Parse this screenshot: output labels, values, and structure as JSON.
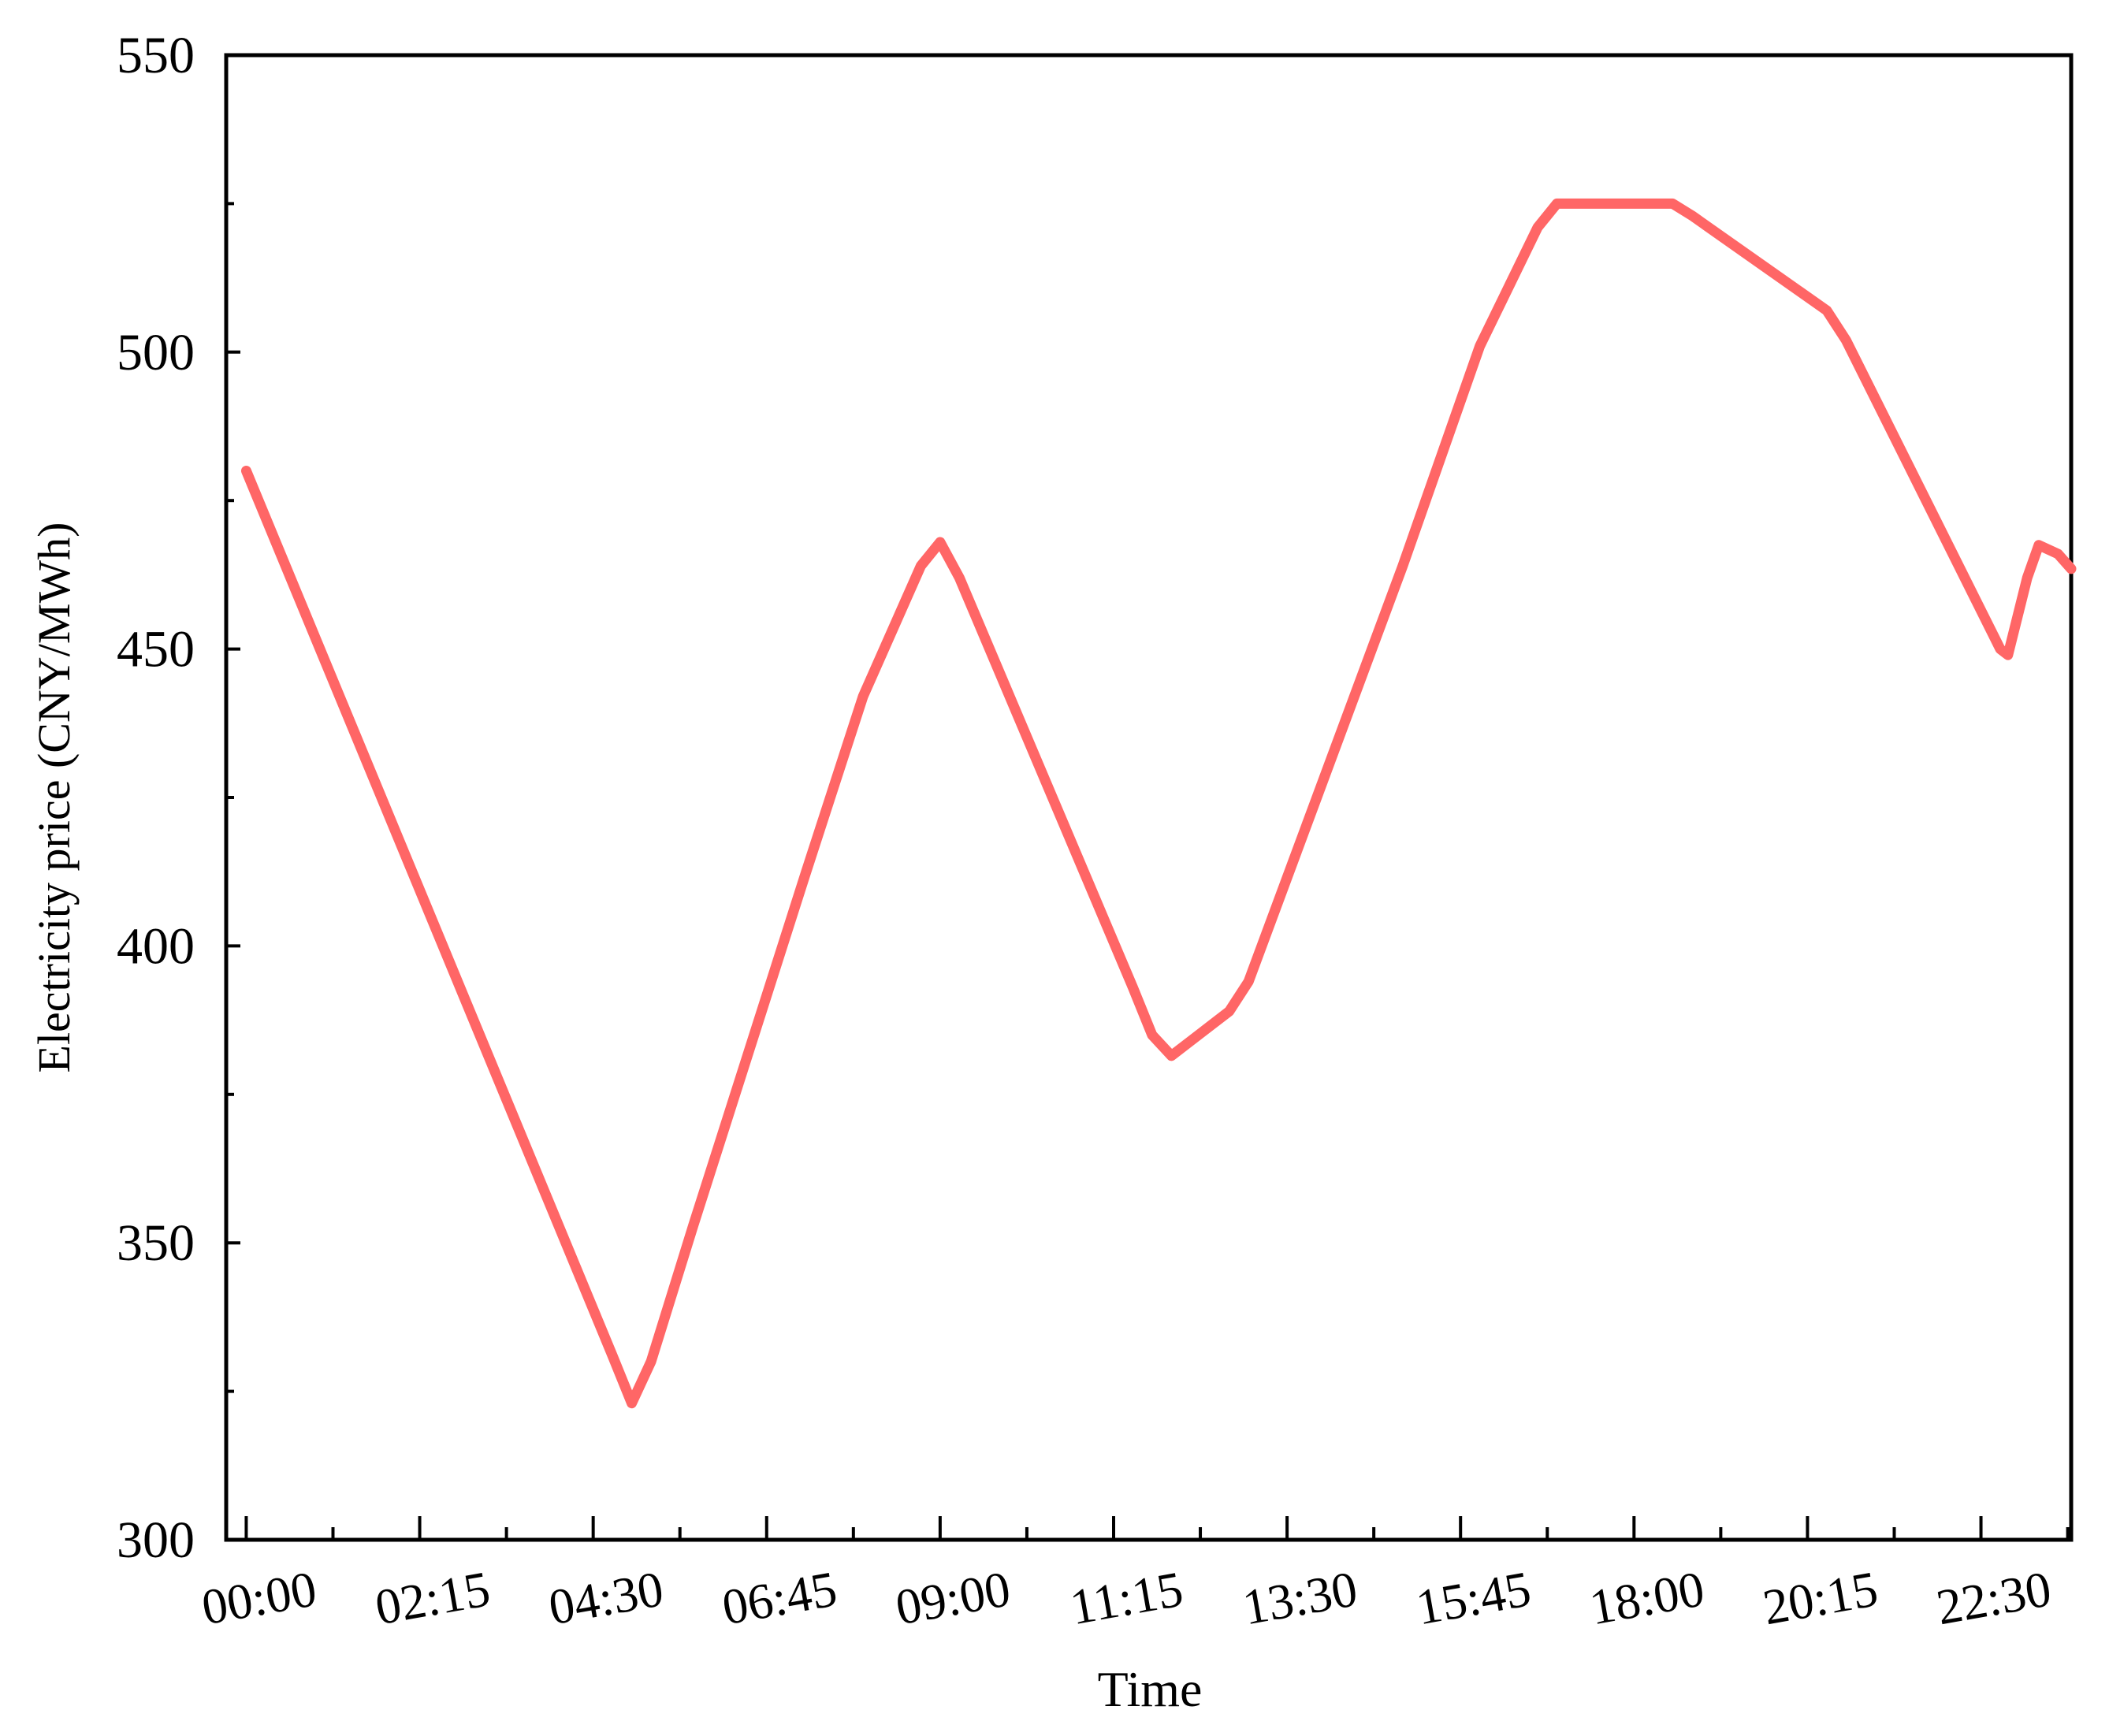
{
  "chart_data": {
    "type": "line",
    "xlabel": "Time",
    "ylabel": "Electricity price (CNY/MWh)",
    "x": [
      0,
      4.75,
      5.0,
      5.25,
      5.8,
      7.25,
      8.0,
      8.75,
      9.0,
      9.25,
      11.5,
      11.75,
      12.0,
      12.25,
      12.75,
      13.0,
      15.0,
      16.0,
      16.75,
      17.0,
      17.25,
      18.5,
      18.75,
      20.5,
      20.75,
      22.75,
      22.85,
      23.1,
      23.25,
      23.5,
      23.67
    ],
    "series": [
      {
        "color": "#ff6666",
        "values": [
          480,
          331,
          323,
          330,
          353,
          412,
          442,
          464,
          468,
          462,
          393,
          385,
          381.5,
          384,
          389,
          394,
          464,
          501,
          521,
          525,
          525,
          525,
          523,
          507,
          502,
          450,
          449,
          462,
          467.5,
          466,
          463.5
        ]
      }
    ],
    "xlim": [
      -0.26,
      23.67
    ],
    "ylim": [
      300,
      550
    ],
    "xticks": [
      {
        "value": 0,
        "label": "00:00"
      },
      {
        "value": 2.25,
        "label": "02:15"
      },
      {
        "value": 4.5,
        "label": "04:30"
      },
      {
        "value": 6.75,
        "label": "06:45"
      },
      {
        "value": 9,
        "label": "09:00"
      },
      {
        "value": 11.25,
        "label": "11:15"
      },
      {
        "value": 13.5,
        "label": "13:30"
      },
      {
        "value": 15.75,
        "label": "15:45"
      },
      {
        "value": 18,
        "label": "18:00"
      },
      {
        "value": 20.25,
        "label": "20:15"
      },
      {
        "value": 22.5,
        "label": "22:30"
      }
    ],
    "xminorticks": [
      1.125,
      3.375,
      5.625,
      7.875,
      10.125,
      12.375,
      14.625,
      16.875,
      19.125,
      21.375,
      23.625
    ],
    "yticks": [
      300,
      350,
      400,
      450,
      500,
      550
    ],
    "yminorticks": [
      325,
      375,
      425,
      475,
      525
    ],
    "grid": false
  }
}
